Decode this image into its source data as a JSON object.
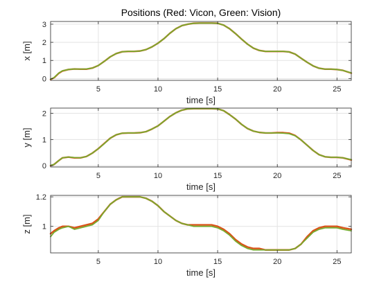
{
  "chart_data": [
    {
      "type": "line",
      "title": "Positions (Red: Vicon, Green: Vision)",
      "xlabel": "time [s]",
      "ylabel": "x [m]",
      "xlim": [
        1,
        26.2
      ],
      "ylim": [
        -0.1,
        3.15
      ],
      "xticks": [
        5,
        10,
        15,
        20,
        25
      ],
      "yticks": [
        0,
        1,
        2,
        3
      ],
      "grid": true,
      "series": [
        {
          "name": "Vicon",
          "color": "#d95319",
          "x": [
            1.0,
            1.3,
            1.7,
            2.0,
            2.5,
            3.0,
            3.5,
            4.0,
            4.5,
            5.0,
            5.5,
            6.0,
            6.5,
            7.0,
            7.5,
            8.0,
            8.5,
            9.0,
            9.5,
            10.0,
            10.5,
            11.0,
            11.5,
            12.0,
            12.5,
            13.0,
            13.5,
            14.0,
            14.5,
            15.0,
            15.5,
            16.0,
            16.5,
            17.0,
            17.5,
            18.0,
            18.5,
            19.0,
            19.5,
            20.0,
            20.5,
            21.0,
            21.5,
            22.0,
            22.5,
            23.0,
            23.5,
            24.0,
            24.5,
            25.0,
            25.5,
            26.2
          ],
          "y": [
            -0.05,
            0.05,
            0.3,
            0.42,
            0.5,
            0.53,
            0.52,
            0.52,
            0.58,
            0.72,
            0.95,
            1.2,
            1.38,
            1.48,
            1.5,
            1.5,
            1.52,
            1.6,
            1.75,
            1.95,
            2.2,
            2.5,
            2.75,
            2.92,
            3.0,
            3.05,
            3.06,
            3.06,
            3.06,
            3.05,
            2.95,
            2.75,
            2.48,
            2.18,
            1.9,
            1.68,
            1.55,
            1.5,
            1.5,
            1.5,
            1.5,
            1.47,
            1.35,
            1.12,
            0.9,
            0.7,
            0.57,
            0.52,
            0.52,
            0.5,
            0.45,
            0.3
          ]
        },
        {
          "name": "Vision",
          "color": "#77ac30",
          "x": [
            1.0,
            1.3,
            1.7,
            2.0,
            2.5,
            3.0,
            3.5,
            4.0,
            4.5,
            5.0,
            5.5,
            6.0,
            6.5,
            7.0,
            7.5,
            8.0,
            8.5,
            9.0,
            9.5,
            10.0,
            10.5,
            11.0,
            11.5,
            12.0,
            12.5,
            13.0,
            13.5,
            14.0,
            14.5,
            15.0,
            15.5,
            16.0,
            16.5,
            17.0,
            17.5,
            18.0,
            18.5,
            19.0,
            19.5,
            20.0,
            20.5,
            21.0,
            21.5,
            22.0,
            22.5,
            23.0,
            23.5,
            24.0,
            24.5,
            25.0,
            25.5,
            26.2
          ],
          "y": [
            -0.04,
            0.06,
            0.31,
            0.43,
            0.5,
            0.53,
            0.52,
            0.53,
            0.58,
            0.72,
            0.95,
            1.2,
            1.38,
            1.48,
            1.5,
            1.5,
            1.52,
            1.6,
            1.75,
            1.95,
            2.2,
            2.5,
            2.75,
            2.92,
            3.0,
            3.05,
            3.06,
            3.06,
            3.06,
            3.05,
            2.95,
            2.75,
            2.48,
            2.18,
            1.9,
            1.68,
            1.55,
            1.5,
            1.5,
            1.5,
            1.5,
            1.47,
            1.35,
            1.12,
            0.9,
            0.7,
            0.57,
            0.52,
            0.52,
            0.5,
            0.45,
            0.31
          ]
        }
      ]
    },
    {
      "type": "line",
      "title": "",
      "xlabel": "time [s]",
      "ylabel": "y [m]",
      "xlim": [
        1,
        26.2
      ],
      "ylim": [
        -0.05,
        2.2
      ],
      "xticks": [
        5,
        10,
        15,
        20,
        25
      ],
      "yticks": [
        0,
        1,
        2
      ],
      "grid": true,
      "series": [
        {
          "name": "Vicon",
          "color": "#d95319",
          "x": [
            1.0,
            1.3,
            1.7,
            2.0,
            2.5,
            3.0,
            3.5,
            4.0,
            4.5,
            5.0,
            5.5,
            6.0,
            6.5,
            7.0,
            7.5,
            8.0,
            8.5,
            9.0,
            9.5,
            10.0,
            10.5,
            11.0,
            11.5,
            12.0,
            12.5,
            13.0,
            13.5,
            14.0,
            14.5,
            15.0,
            15.5,
            16.0,
            16.5,
            17.0,
            17.5,
            18.0,
            18.5,
            19.0,
            19.5,
            20.0,
            20.5,
            21.0,
            21.5,
            22.0,
            22.5,
            23.0,
            23.5,
            24.0,
            24.5,
            25.0,
            25.5,
            26.2
          ],
          "y": [
            0.0,
            0.05,
            0.2,
            0.3,
            0.33,
            0.3,
            0.3,
            0.35,
            0.48,
            0.65,
            0.85,
            1.05,
            1.18,
            1.24,
            1.25,
            1.25,
            1.26,
            1.3,
            1.4,
            1.52,
            1.7,
            1.88,
            2.02,
            2.12,
            2.17,
            2.18,
            2.18,
            2.18,
            2.18,
            2.17,
            2.1,
            1.95,
            1.78,
            1.58,
            1.42,
            1.32,
            1.27,
            1.25,
            1.25,
            1.26,
            1.26,
            1.24,
            1.15,
            0.98,
            0.78,
            0.58,
            0.42,
            0.34,
            0.32,
            0.32,
            0.3,
            0.22
          ]
        },
        {
          "name": "Vision",
          "color": "#77ac30",
          "x": [
            1.0,
            1.3,
            1.7,
            2.0,
            2.5,
            3.0,
            3.5,
            4.0,
            4.5,
            5.0,
            5.5,
            6.0,
            6.5,
            7.0,
            7.5,
            8.0,
            8.5,
            9.0,
            9.5,
            10.0,
            10.5,
            11.0,
            11.5,
            12.0,
            12.5,
            13.0,
            13.5,
            14.0,
            14.5,
            15.0,
            15.5,
            16.0,
            16.5,
            17.0,
            17.5,
            18.0,
            18.5,
            19.0,
            19.5,
            20.0,
            20.5,
            21.0,
            21.5,
            22.0,
            22.5,
            23.0,
            23.5,
            24.0,
            24.5,
            25.0,
            25.5,
            26.2
          ],
          "y": [
            0.01,
            0.05,
            0.2,
            0.3,
            0.33,
            0.31,
            0.3,
            0.35,
            0.48,
            0.65,
            0.84,
            1.05,
            1.18,
            1.24,
            1.25,
            1.25,
            1.26,
            1.3,
            1.4,
            1.52,
            1.7,
            1.88,
            2.02,
            2.12,
            2.17,
            2.18,
            2.18,
            2.18,
            2.18,
            2.17,
            2.1,
            1.95,
            1.78,
            1.58,
            1.42,
            1.32,
            1.27,
            1.25,
            1.25,
            1.25,
            1.24,
            1.22,
            1.14,
            0.98,
            0.78,
            0.58,
            0.42,
            0.34,
            0.32,
            0.32,
            0.3,
            0.23
          ]
        }
      ]
    },
    {
      "type": "line",
      "title": "",
      "xlabel": "time [s]",
      "ylabel": "z [m]",
      "xlim": [
        1,
        26.2
      ],
      "ylim": [
        0.82,
        1.21
      ],
      "xticks": [
        5,
        10,
        15,
        20,
        25
      ],
      "yticks": [
        1,
        1.2
      ],
      "grid": true,
      "series": [
        {
          "name": "Vicon",
          "color": "#d95319",
          "x": [
            1.0,
            1.3,
            1.7,
            2.0,
            2.5,
            3.0,
            3.5,
            4.0,
            4.5,
            5.0,
            5.5,
            6.0,
            6.5,
            7.0,
            7.5,
            8.0,
            8.5,
            9.0,
            9.5,
            10.0,
            10.5,
            11.0,
            11.5,
            12.0,
            12.5,
            13.0,
            13.5,
            14.0,
            14.5,
            15.0,
            15.5,
            16.0,
            16.5,
            17.0,
            17.5,
            18.0,
            18.5,
            19.0,
            19.5,
            20.0,
            20.5,
            21.0,
            21.5,
            22.0,
            22.5,
            23.0,
            23.5,
            24.0,
            24.5,
            25.0,
            25.5,
            26.2
          ],
          "y": [
            0.95,
            0.97,
            0.99,
            1.0,
            1.0,
            0.99,
            1.0,
            1.01,
            1.02,
            1.05,
            1.1,
            1.15,
            1.18,
            1.2,
            1.2,
            1.2,
            1.2,
            1.19,
            1.17,
            1.14,
            1.1,
            1.07,
            1.04,
            1.02,
            1.01,
            1.01,
            1.01,
            1.01,
            1.01,
            1.0,
            0.98,
            0.95,
            0.91,
            0.88,
            0.86,
            0.85,
            0.85,
            0.84,
            0.84,
            0.84,
            0.84,
            0.84,
            0.85,
            0.88,
            0.93,
            0.97,
            0.99,
            1.0,
            1.0,
            1.0,
            0.99,
            0.98
          ]
        },
        {
          "name": "Vision",
          "color": "#77ac30",
          "x": [
            1.0,
            1.3,
            1.7,
            2.0,
            2.5,
            3.0,
            3.5,
            4.0,
            4.5,
            5.0,
            5.5,
            6.0,
            6.5,
            7.0,
            7.5,
            8.0,
            8.5,
            9.0,
            9.5,
            10.0,
            10.5,
            11.0,
            11.5,
            12.0,
            12.5,
            13.0,
            13.5,
            14.0,
            14.5,
            15.0,
            15.5,
            16.0,
            16.5,
            17.0,
            17.5,
            18.0,
            18.5,
            19.0,
            19.5,
            20.0,
            20.5,
            21.0,
            21.5,
            22.0,
            22.5,
            23.0,
            23.5,
            24.0,
            24.5,
            25.0,
            25.5,
            26.2
          ],
          "y": [
            0.93,
            0.96,
            0.98,
            0.99,
            1.0,
            0.98,
            0.99,
            1.0,
            1.01,
            1.04,
            1.1,
            1.15,
            1.18,
            1.2,
            1.2,
            1.2,
            1.2,
            1.19,
            1.17,
            1.14,
            1.1,
            1.07,
            1.04,
            1.02,
            1.01,
            1.0,
            1.0,
            1.0,
            1.0,
            0.99,
            0.97,
            0.94,
            0.9,
            0.87,
            0.85,
            0.84,
            0.84,
            0.84,
            0.84,
            0.84,
            0.84,
            0.84,
            0.85,
            0.88,
            0.92,
            0.96,
            0.98,
            0.99,
            0.99,
            0.99,
            0.98,
            0.97
          ]
        }
      ]
    }
  ]
}
